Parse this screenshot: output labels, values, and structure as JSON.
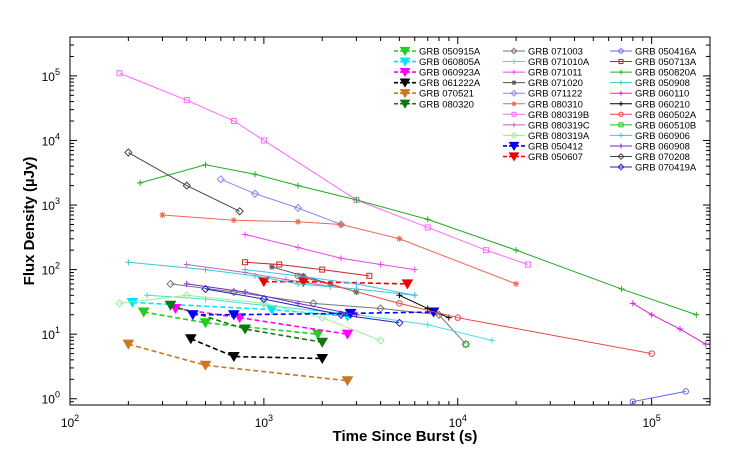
{
  "chart_data": {
    "type": "line",
    "xlabel": "Time Since Burst (s)",
    "ylabel": "Flux Density (µJy)",
    "xscale": "log",
    "yscale": "log",
    "xlim": [
      100,
      200000
    ],
    "ylim": [
      0.8,
      400000
    ],
    "x_tick_labels": [
      {
        "value": 100,
        "base": "10",
        "exp": "2"
      },
      {
        "value": 1000,
        "base": "10",
        "exp": "3"
      },
      {
        "value": 10000,
        "base": "10",
        "exp": "4"
      },
      {
        "value": 100000,
        "base": "10",
        "exp": "5"
      }
    ],
    "y_tick_labels": [
      {
        "value": 1,
        "base": "10",
        "exp": "0"
      },
      {
        "value": 10,
        "base": "10",
        "exp": "1"
      },
      {
        "value": 100,
        "base": "10",
        "exp": "2"
      },
      {
        "value": 1000,
        "base": "10",
        "exp": "3"
      },
      {
        "value": 10000,
        "base": "10",
        "exp": "4"
      },
      {
        "value": 100000,
        "base": "10",
        "exp": "5"
      }
    ],
    "grid": false,
    "legend_placement": "top-right",
    "series": [
      {
        "name": "GRB 050915A",
        "color": "#22cc22",
        "marker": "triangle",
        "dash": true,
        "x": [
          240,
          500,
          1900
        ],
        "y": [
          22,
          15,
          10
        ]
      },
      {
        "name": "GRB 060805A",
        "color": "#00e5ff",
        "marker": "triangle",
        "dash": true,
        "x": [
          210,
          1100,
          2700
        ],
        "y": [
          31,
          24,
          19
        ]
      },
      {
        "name": "GRB 060923A",
        "color": "#ff00ff",
        "marker": "triangle",
        "dash": true,
        "x": [
          350,
          750,
          2700
        ],
        "y": [
          25,
          18,
          10
        ]
      },
      {
        "name": "GRB 061222A",
        "color": "#000000",
        "marker": "triangle",
        "dash": true,
        "x": [
          420,
          700,
          2000
        ],
        "y": [
          8.5,
          4.5,
          4.2
        ]
      },
      {
        "name": "GRB 070521",
        "color": "#cc7722",
        "marker": "triangle",
        "dash": true,
        "x": [
          200,
          500,
          2700
        ],
        "y": [
          7,
          3.3,
          1.9
        ]
      },
      {
        "name": "GRB 080320",
        "color": "#117711",
        "marker": "triangle",
        "dash": true,
        "x": [
          330,
          800,
          2000
        ],
        "y": [
          28,
          12,
          7.5
        ]
      },
      {
        "name": "GRB 071003",
        "color": "#777777",
        "marker": "diamond",
        "dash": false,
        "x": [
          330,
          700,
          1800,
          4000,
          8000,
          11000
        ],
        "y": [
          60,
          45,
          30,
          25,
          20,
          7
        ]
      },
      {
        "name": "GRB 071010A",
        "color": "#44dddd",
        "marker": "plus",
        "dash": false,
        "x": [
          250,
          500,
          1000,
          3000,
          7000,
          15000
        ],
        "y": [
          40,
          35,
          28,
          20,
          14,
          8
        ]
      },
      {
        "name": "GRB 071011",
        "color": "#ee44ee",
        "marker": "plus",
        "dash": false,
        "x": [
          800,
          1500,
          2500,
          4000,
          6000
        ],
        "y": [
          350,
          220,
          150,
          120,
          100
        ]
      },
      {
        "name": "GRB 071020",
        "color": "#555555",
        "marker": "star",
        "dash": false,
        "x": [
          1100,
          1600,
          2200,
          3000
        ],
        "y": [
          110,
          80,
          60,
          45
        ]
      },
      {
        "name": "GRB 071122",
        "color": "#8888ee",
        "marker": "diamond",
        "dash": false,
        "x": [
          600,
          900,
          1500,
          2500
        ],
        "y": [
          2500,
          1500,
          900,
          500
        ]
      },
      {
        "name": "GRB 080310",
        "color": "#ee6655",
        "marker": "star",
        "dash": false,
        "x": [
          300,
          700,
          1500,
          2500,
          5000,
          20000
        ],
        "y": [
          700,
          580,
          550,
          500,
          300,
          60
        ]
      },
      {
        "name": "GRB 080319B",
        "color": "#ff66ff",
        "marker": "square",
        "dash": false,
        "x": [
          180,
          400,
          700,
          1000,
          3000,
          7000,
          14000,
          23000
        ],
        "y": [
          110000,
          42000,
          20000,
          10000,
          1200,
          450,
          200,
          120
        ]
      },
      {
        "name": "GRB 080319C",
        "color": "#bb66bb",
        "marker": "plus",
        "dash": false,
        "x": [
          400,
          800,
          1300,
          2200
        ],
        "y": [
          120,
          90,
          70,
          55
        ]
      },
      {
        "name": "GRB 080319A",
        "color": "#99ee99",
        "marker": "diamond",
        "dash": false,
        "x": [
          180,
          400,
          1000,
          2000,
          4000
        ],
        "y": [
          30,
          40,
          30,
          18,
          8
        ]
      },
      {
        "name": "GRB 050412",
        "color": "#0000ee",
        "marker": "triangle",
        "dash": true,
        "x": [
          430,
          700,
          2800,
          7500
        ],
        "y": [
          20,
          20,
          21,
          22
        ]
      },
      {
        "name": "GRB 050607",
        "color": "#ee0000",
        "marker": "triangle",
        "dash": true,
        "x": [
          1000,
          1600,
          5500
        ],
        "y": [
          65,
          65,
          60
        ]
      },
      {
        "name": "GRB 050416A",
        "color": "#6666ee",
        "marker": "circle",
        "dash": false,
        "x": [
          80000,
          150000
        ],
        "y": [
          0.9,
          1.3
        ]
      },
      {
        "name": "GRB 050713A",
        "color": "#cc2222",
        "marker": "square",
        "dash": false,
        "x": [
          800,
          1200,
          2000,
          3500
        ],
        "y": [
          130,
          120,
          100,
          80
        ]
      },
      {
        "name": "GRB 050820A",
        "color": "#22aa22",
        "marker": "plus",
        "dash": false,
        "x": [
          230,
          500,
          900,
          1500,
          3000,
          7000,
          20000,
          70000,
          170000
        ],
        "y": [
          2200,
          4200,
          3000,
          2000,
          1200,
          600,
          200,
          50,
          20
        ]
      },
      {
        "name": "GRB 050908",
        "color": "#33cccc",
        "marker": "plus",
        "dash": false,
        "x": [
          200,
          500,
          900,
          1500,
          3000,
          6000
        ],
        "y": [
          130,
          100,
          80,
          60,
          50,
          40
        ]
      },
      {
        "name": "GRB 060110",
        "color": "#dd22dd",
        "marker": "plus",
        "dash": false,
        "x": [
          80000,
          100000,
          140000,
          190000
        ],
        "y": [
          30,
          20,
          12,
          7
        ]
      },
      {
        "name": "GRB 060210",
        "color": "#000000",
        "marker": "plus",
        "dash": false,
        "x": [
          5000,
          7000,
          9000
        ],
        "y": [
          40,
          25,
          18
        ]
      },
      {
        "name": "GRB 060502A",
        "color": "#ee4444",
        "marker": "circle",
        "dash": false,
        "x": [
          1500,
          5000,
          10000,
          100000
        ],
        "y": [
          80,
          30,
          18,
          5
        ]
      },
      {
        "name": "GRB 060510B",
        "color": "#22bb22",
        "marker": "square",
        "dash": false,
        "x": [
          11000
        ],
        "y": [
          7
        ]
      },
      {
        "name": "GRB 060906",
        "color": "#44bbee",
        "marker": "plus",
        "dash": false,
        "x": [
          800,
          1500,
          3000,
          6000
        ],
        "y": [
          100,
          80,
          60,
          40
        ]
      },
      {
        "name": "GRB 060908",
        "color": "#7722cc",
        "marker": "plus",
        "dash": false,
        "x": [
          400,
          800,
          1500,
          3000
        ],
        "y": [
          60,
          45,
          30,
          20
        ]
      },
      {
        "name": "GRB 070208",
        "color": "#444444",
        "marker": "diamond",
        "dash": false,
        "x": [
          200,
          400,
          750
        ],
        "y": [
          6500,
          2000,
          800
        ]
      },
      {
        "name": "GRB 070419A",
        "color": "#2222bb",
        "marker": "diamond",
        "dash": false,
        "x": [
          500,
          1000,
          2500,
          5000
        ],
        "y": [
          50,
          35,
          20,
          15
        ]
      }
    ]
  }
}
